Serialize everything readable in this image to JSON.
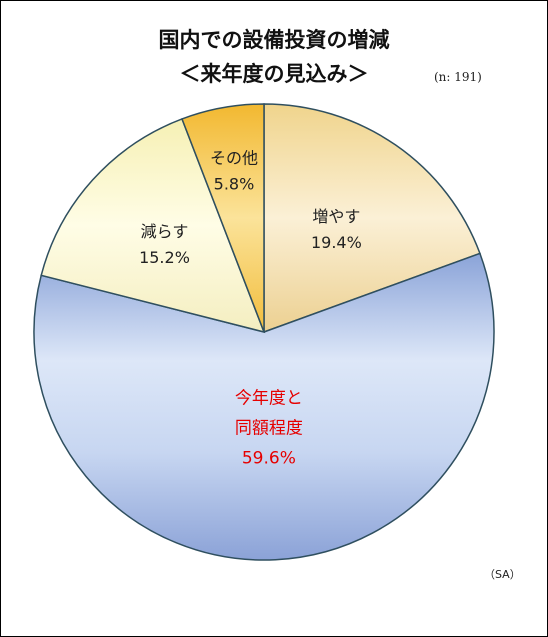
{
  "title_line1": "国内での設備投資の増減",
  "title_line2": "＜来年度の見込み＞",
  "sample_note": "(n: 191)",
  "answer_note": "（SA）",
  "chart_data": {
    "type": "pie",
    "title": "国内での設備投資の増減 ＜来年度の見込み＞",
    "slices": [
      {
        "label": "増やす",
        "lines": [
          "増やす"
        ],
        "value": 19.4,
        "value_label": "19.4%",
        "color": "#f2dca0"
      },
      {
        "label": "今年度と同額程度",
        "lines": [
          "今年度と",
          "同額程度"
        ],
        "value": 59.6,
        "value_label": "59.6%",
        "color": "#9fb4e0"
      },
      {
        "label": "減らす",
        "lines": [
          "減らす"
        ],
        "value": 15.2,
        "value_label": "15.2%",
        "color": "#f7f3c0"
      },
      {
        "label": "その他",
        "lines": [
          "その他"
        ],
        "value": 5.8,
        "value_label": "5.8%",
        "color": "#f3c24a"
      }
    ],
    "start_angle": "12 o'clock",
    "direction": "clockwise"
  }
}
